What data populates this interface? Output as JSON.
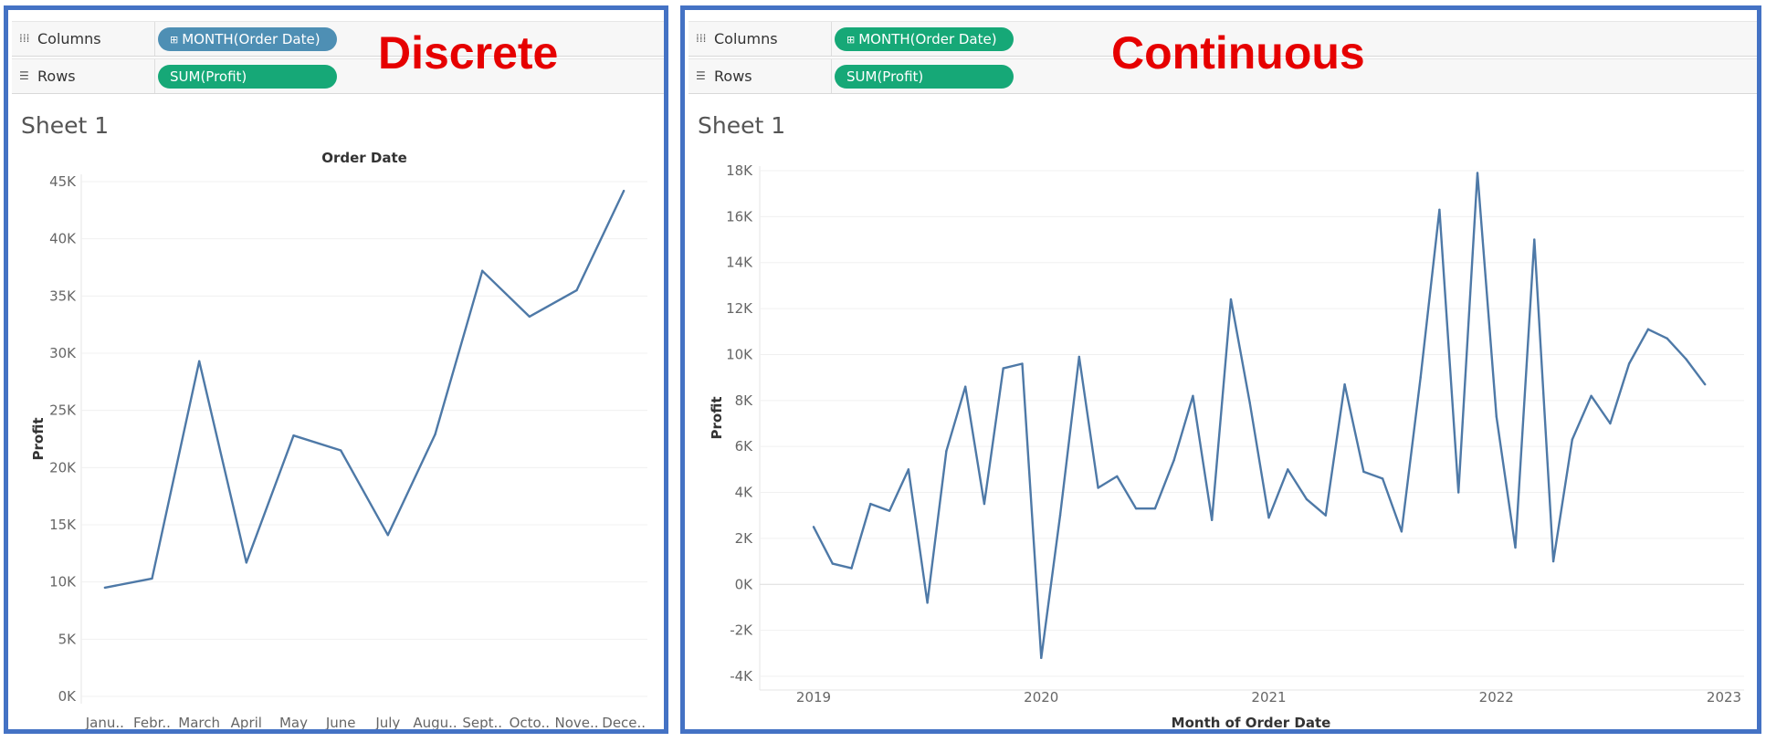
{
  "panels": [
    {
      "id": "left",
      "heading": "Discrete",
      "shelves": {
        "columns_label": "Columns",
        "columns_pill": "MONTH(Order Date)",
        "columns_pill_color": "#4e8fb4",
        "rows_label": "Rows",
        "rows_pill": "SUM(Profit)",
        "rows_pill_color": "#16a877"
      },
      "sheet_title": "Sheet 1"
    },
    {
      "id": "right",
      "heading": "Continuous",
      "shelves": {
        "columns_label": "Columns",
        "columns_pill": "MONTH(Order Date)",
        "columns_pill_color": "#16a877",
        "rows_label": "Rows",
        "rows_pill": "SUM(Profit)",
        "rows_pill_color": "#16a877"
      },
      "sheet_title": "Sheet 1"
    }
  ],
  "colors": {
    "line": "#4e79a7",
    "frame": "#4472c4",
    "heading": "#e60000"
  },
  "chart_data": [
    {
      "type": "line",
      "title": "Order Date",
      "xlabel": "",
      "ylabel": "Profit",
      "categories": [
        "Janu..",
        "Febr..",
        "March",
        "April",
        "May",
        "June",
        "July",
        "Augu..",
        "Sept..",
        "Octo..",
        "Nove..",
        "Dece.."
      ],
      "values": [
        9500,
        10300,
        29300,
        11700,
        22800,
        21500,
        14100,
        22900,
        37200,
        33200,
        35500,
        44200
      ],
      "y_ticks": [
        "0K",
        "5K",
        "10K",
        "15K",
        "20K",
        "25K",
        "30K",
        "35K",
        "40K",
        "45K"
      ],
      "ylim": [
        0,
        45000
      ],
      "grid": true
    },
    {
      "type": "line",
      "title": "",
      "xlabel": "Month of Order Date",
      "ylabel": "Profit",
      "x_ticks": [
        "2019",
        "2020",
        "2021",
        "2022",
        "2023"
      ],
      "x": [
        "2019-01",
        "2019-02",
        "2019-03",
        "2019-04",
        "2019-05",
        "2019-06",
        "2019-07",
        "2019-08",
        "2019-09",
        "2019-10",
        "2019-11",
        "2019-12",
        "2020-01",
        "2020-02",
        "2020-03",
        "2020-04",
        "2020-05",
        "2020-06",
        "2020-07",
        "2020-08",
        "2020-09",
        "2020-10",
        "2020-11",
        "2020-12",
        "2021-01",
        "2021-02",
        "2021-03",
        "2021-04",
        "2021-05",
        "2021-06",
        "2021-07",
        "2021-08",
        "2021-09",
        "2021-10",
        "2021-11",
        "2021-12",
        "2022-01",
        "2022-02",
        "2022-03",
        "2022-04",
        "2022-05",
        "2022-06",
        "2022-07",
        "2022-08",
        "2022-09",
        "2022-10",
        "2022-11",
        "2022-12"
      ],
      "values": [
        2500,
        900,
        700,
        3500,
        3200,
        5000,
        -800,
        5800,
        8600,
        3500,
        9400,
        9600,
        -3200,
        3000,
        9900,
        4200,
        4700,
        3300,
        3300,
        5400,
        8200,
        2800,
        12400,
        7900,
        2900,
        5000,
        3700,
        3000,
        8700,
        4900,
        4600,
        2300,
        9000,
        16300,
        4000,
        17900,
        7300,
        1600,
        15000,
        1000,
        6300,
        8200,
        7000,
        9600,
        11100,
        10700,
        9800,
        8700
      ],
      "y_ticks": [
        "-4K",
        "-2K",
        "0K",
        "2K",
        "4K",
        "6K",
        "8K",
        "10K",
        "12K",
        "14K",
        "16K",
        "18K"
      ],
      "ylim": [
        -4000,
        18000
      ],
      "grid": true
    }
  ]
}
